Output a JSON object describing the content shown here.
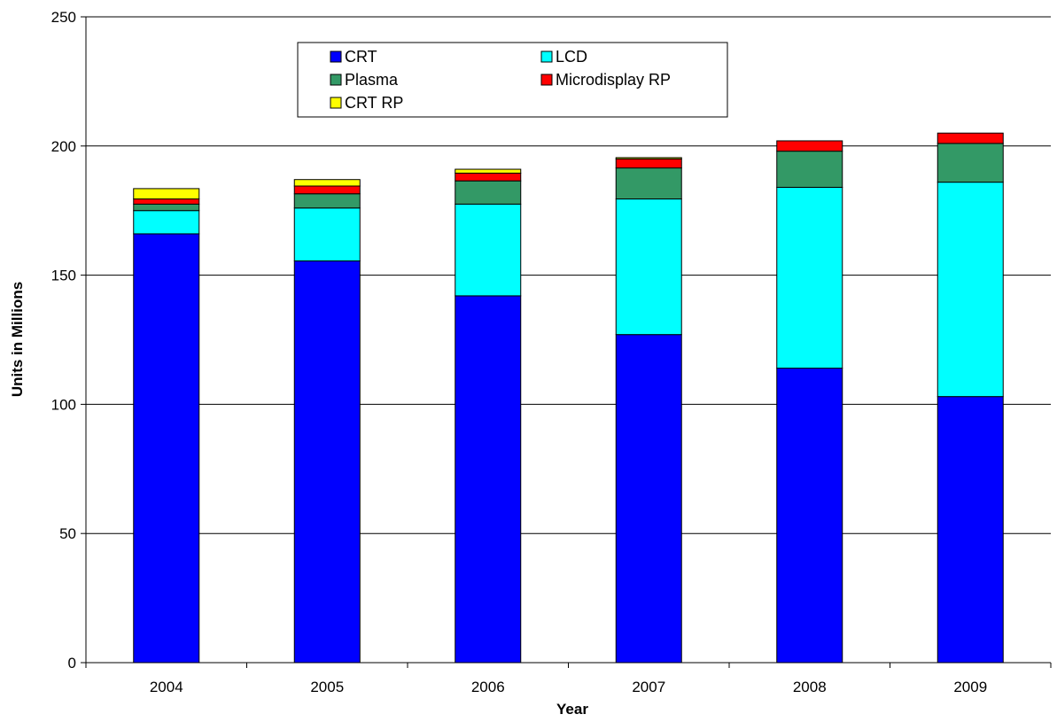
{
  "chart_data": {
    "type": "bar",
    "stacked": true,
    "title": "",
    "xlabel": "Year",
    "ylabel": "Units in Millions",
    "categories": [
      "2004",
      "2005",
      "2006",
      "2007",
      "2008",
      "2009"
    ],
    "ylim": [
      0,
      250
    ],
    "yticks": [
      0,
      50,
      100,
      150,
      200,
      250
    ],
    "grid": true,
    "legend_position": "top-center",
    "series": [
      {
        "name": "CRT",
        "color": "#0000ff",
        "values": [
          166,
          155.5,
          142,
          127,
          114,
          103
        ]
      },
      {
        "name": "LCD",
        "color": "#00ffff",
        "values": [
          9,
          20.5,
          35.5,
          52.5,
          70,
          83
        ]
      },
      {
        "name": "Plasma",
        "color": "#339966",
        "values": [
          2.5,
          5.5,
          9,
          12,
          14,
          15
        ]
      },
      {
        "name": "Microdisplay RP",
        "color": "#ff0000",
        "values": [
          2,
          3,
          3,
          3.5,
          4,
          4
        ]
      },
      {
        "name": "CRT RP",
        "color": "#ffff00",
        "values": [
          4,
          2.5,
          1.5,
          0.5,
          0,
          0
        ]
      }
    ]
  }
}
